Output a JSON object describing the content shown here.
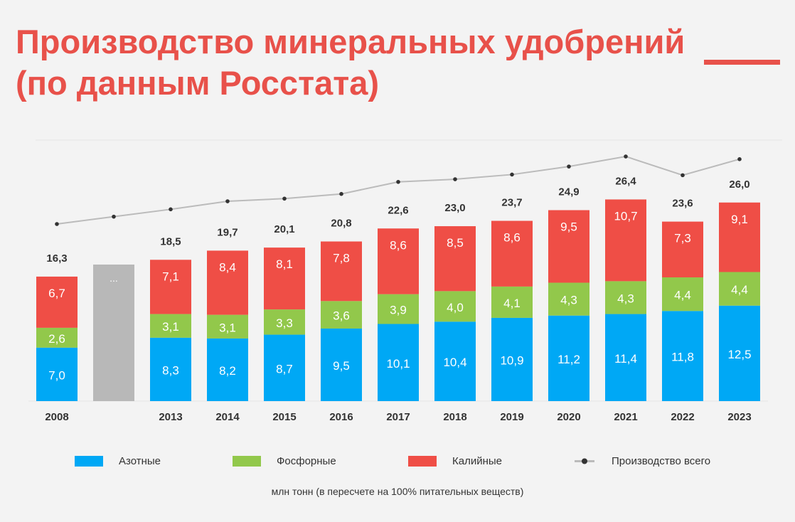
{
  "title": {
    "line1": "Производство минеральных удобрений",
    "line2": "(по данным Росстата)"
  },
  "chart_data": {
    "type": "bar",
    "stacked": true,
    "categories": [
      "2008",
      "",
      "2013",
      "2014",
      "2015",
      "2016",
      "2017",
      "2018",
      "2019",
      "2020",
      "2021",
      "2022",
      "2023"
    ],
    "series": [
      {
        "name": "Азотные",
        "color": "#00a8f5",
        "values": [
          7.0,
          null,
          8.3,
          8.2,
          8.7,
          9.5,
          10.1,
          10.4,
          10.9,
          11.2,
          11.4,
          11.8,
          12.5
        ],
        "labels": [
          "7,0",
          "",
          "8,3",
          "8,2",
          "8,7",
          "9,5",
          "10,1",
          "10,4",
          "10,9",
          "11,2",
          "11,4",
          "11,8",
          "12,5"
        ]
      },
      {
        "name": "Фосфорные",
        "color": "#92c84b",
        "values": [
          2.6,
          null,
          3.1,
          3.1,
          3.3,
          3.6,
          3.9,
          4.0,
          4.1,
          4.3,
          4.3,
          4.4,
          4.4
        ],
        "labels": [
          "2,6",
          "",
          "3,1",
          "3,1",
          "3,3",
          "3,6",
          "3,9",
          "4,0",
          "4,1",
          "4,3",
          "4,3",
          "4,4",
          "4,4"
        ]
      },
      {
        "name": "Калийные",
        "color": "#ef4e46",
        "values": [
          6.7,
          null,
          7.1,
          8.4,
          8.1,
          7.8,
          8.6,
          8.5,
          8.6,
          9.5,
          10.7,
          7.3,
          9.1
        ],
        "labels": [
          "6,7",
          "",
          "7,1",
          "8,4",
          "8,1",
          "7,8",
          "8,6",
          "8,5",
          "8,6",
          "9,5",
          "10,7",
          "7,3",
          "9,1"
        ]
      }
    ],
    "line_series": {
      "name": "Производство всего",
      "color": "#bbbbbb",
      "marker_color": "#333333",
      "values": [
        16.3,
        null,
        18.5,
        19.7,
        20.1,
        20.8,
        22.6,
        23.0,
        23.7,
        24.9,
        26.4,
        23.6,
        26.0
      ],
      "labels": [
        "16,3",
        "",
        "18,5",
        "19,7",
        "20,1",
        "20,8",
        "22,6",
        "23,0",
        "23,7",
        "24,9",
        "26,4",
        "23,6",
        "26,0"
      ]
    },
    "gap_bar": {
      "label": "...",
      "color": "#b8b8b8"
    },
    "legend_position": "bottom",
    "unit_note": "млн тонн (в пересчете на 100% питательных веществ)",
    "grid": false
  }
}
